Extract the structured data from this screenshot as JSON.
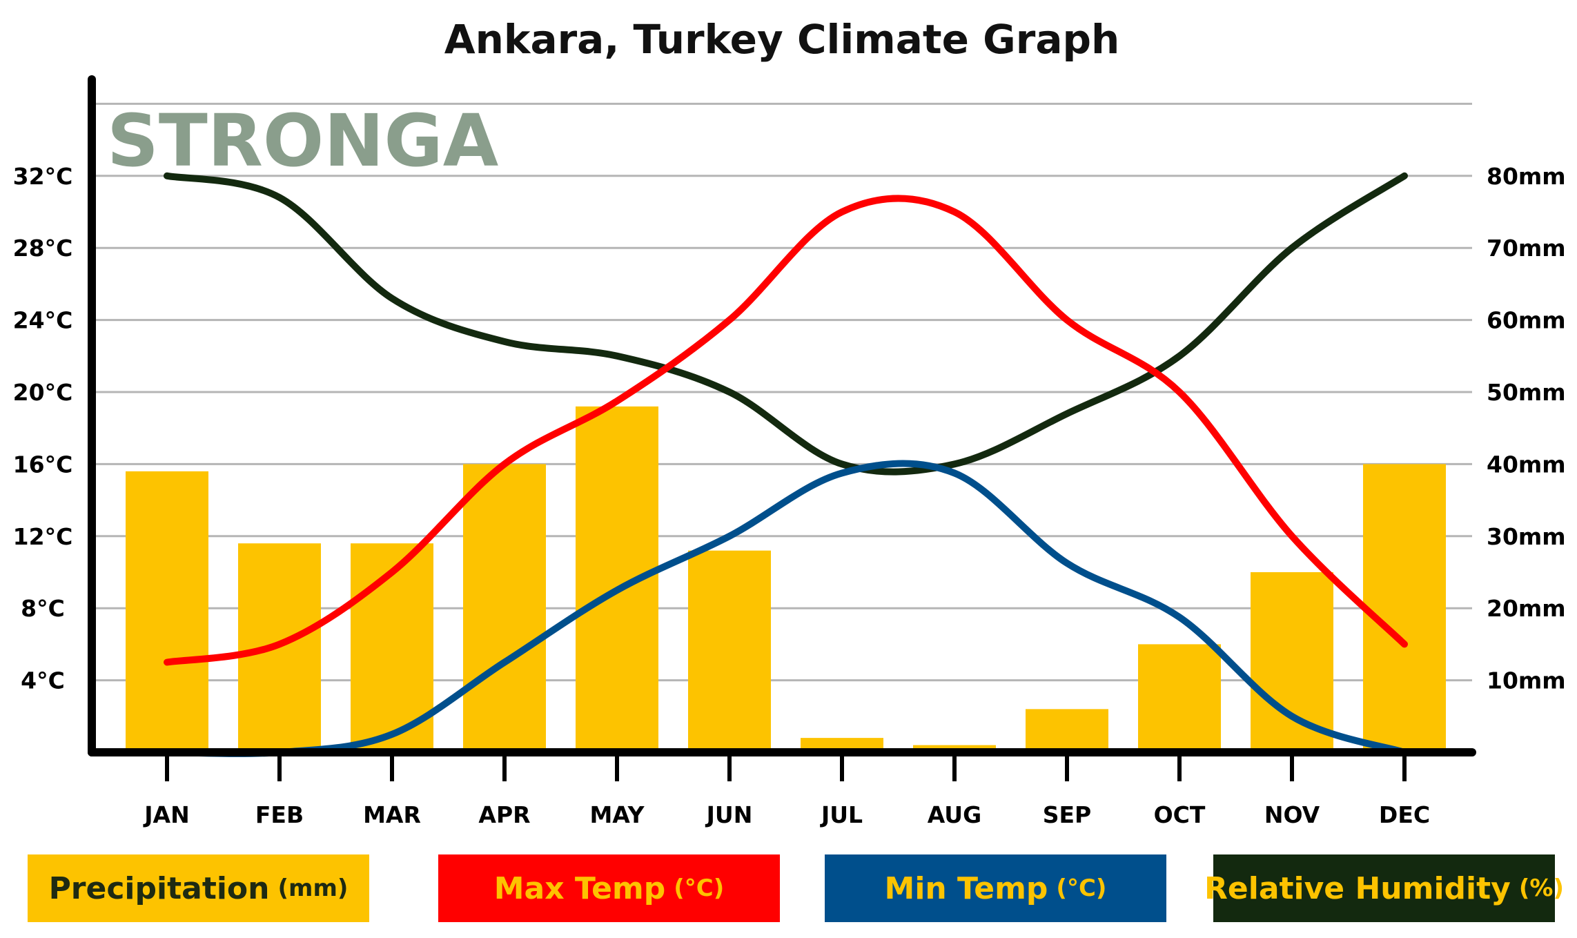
{
  "chart_data": {
    "type": "bar",
    "title": "Ankara, Turkey Climate Graph",
    "watermark": "STRONGA",
    "categories": [
      "JAN",
      "FEB",
      "MAR",
      "APR",
      "MAY",
      "JUN",
      "JUL",
      "AUG",
      "SEP",
      "OCT",
      "NOV",
      "DEC"
    ],
    "left_axis": {
      "ticks": [
        {
          "value": 4,
          "label": "4°C"
        },
        {
          "value": 8,
          "label": "8°C"
        },
        {
          "value": 12,
          "label": "12°C"
        },
        {
          "value": 16,
          "label": "16°C"
        },
        {
          "value": 20,
          "label": "20°C"
        },
        {
          "value": 24,
          "label": "24°C"
        },
        {
          "value": 28,
          "label": "28°C"
        },
        {
          "value": 32,
          "label": "32°C"
        }
      ],
      "ylim": [
        0,
        36
      ]
    },
    "right_axis": {
      "ticks": [
        {
          "value": 10,
          "label": "10mm"
        },
        {
          "value": 20,
          "label": "20mm"
        },
        {
          "value": 30,
          "label": "30mm"
        },
        {
          "value": 40,
          "label": "40mm"
        },
        {
          "value": 50,
          "label": "50mm"
        },
        {
          "value": 60,
          "label": "60mm"
        },
        {
          "value": 70,
          "label": "70mm"
        },
        {
          "value": 80,
          "label": "80mm"
        }
      ],
      "ylim": [
        0,
        90
      ]
    },
    "grid": true,
    "series": [
      {
        "name": "Precipitation",
        "unit": "(mm)",
        "kind": "bar",
        "axis": "right",
        "color": "#fdc300",
        "values": [
          39,
          29,
          29,
          40,
          48,
          28,
          2,
          1,
          6,
          15,
          25,
          40
        ]
      },
      {
        "name": "Max Temp",
        "unit": "(°C)",
        "kind": "line",
        "axis": "left",
        "color": "#ff0000",
        "values": [
          5,
          6,
          10,
          16,
          19.5,
          24,
          30,
          30,
          24,
          20,
          12,
          6
        ]
      },
      {
        "name": "Min Temp",
        "unit": "(°C)",
        "kind": "line",
        "axis": "left",
        "color": "#004f8c",
        "values": [
          0,
          0,
          1,
          5,
          9,
          12,
          15.5,
          15.5,
          10.5,
          7.5,
          2,
          0
        ]
      },
      {
        "name": "Relative Humidity",
        "unit": "(%)",
        "kind": "line",
        "axis": "right",
        "color": "#13290f",
        "values": [
          80,
          77,
          63,
          57,
          55,
          50,
          40,
          40,
          47,
          55,
          70,
          80
        ]
      }
    ]
  },
  "legend": [
    {
      "label": "Precipitation",
      "unit": "(mm)",
      "bg": "#fdc300",
      "fg": "#1e2a12"
    },
    {
      "label": "Max Temp",
      "unit": "(°C)",
      "bg": "#ff0000",
      "fg": "#fdc300"
    },
    {
      "label": "Min Temp",
      "unit": "(°C)",
      "bg": "#004f8c",
      "fg": "#fdc300"
    },
    {
      "label": "Relative Humidity",
      "unit": "(%)",
      "bg": "#13290f",
      "fg": "#fdc300"
    }
  ]
}
